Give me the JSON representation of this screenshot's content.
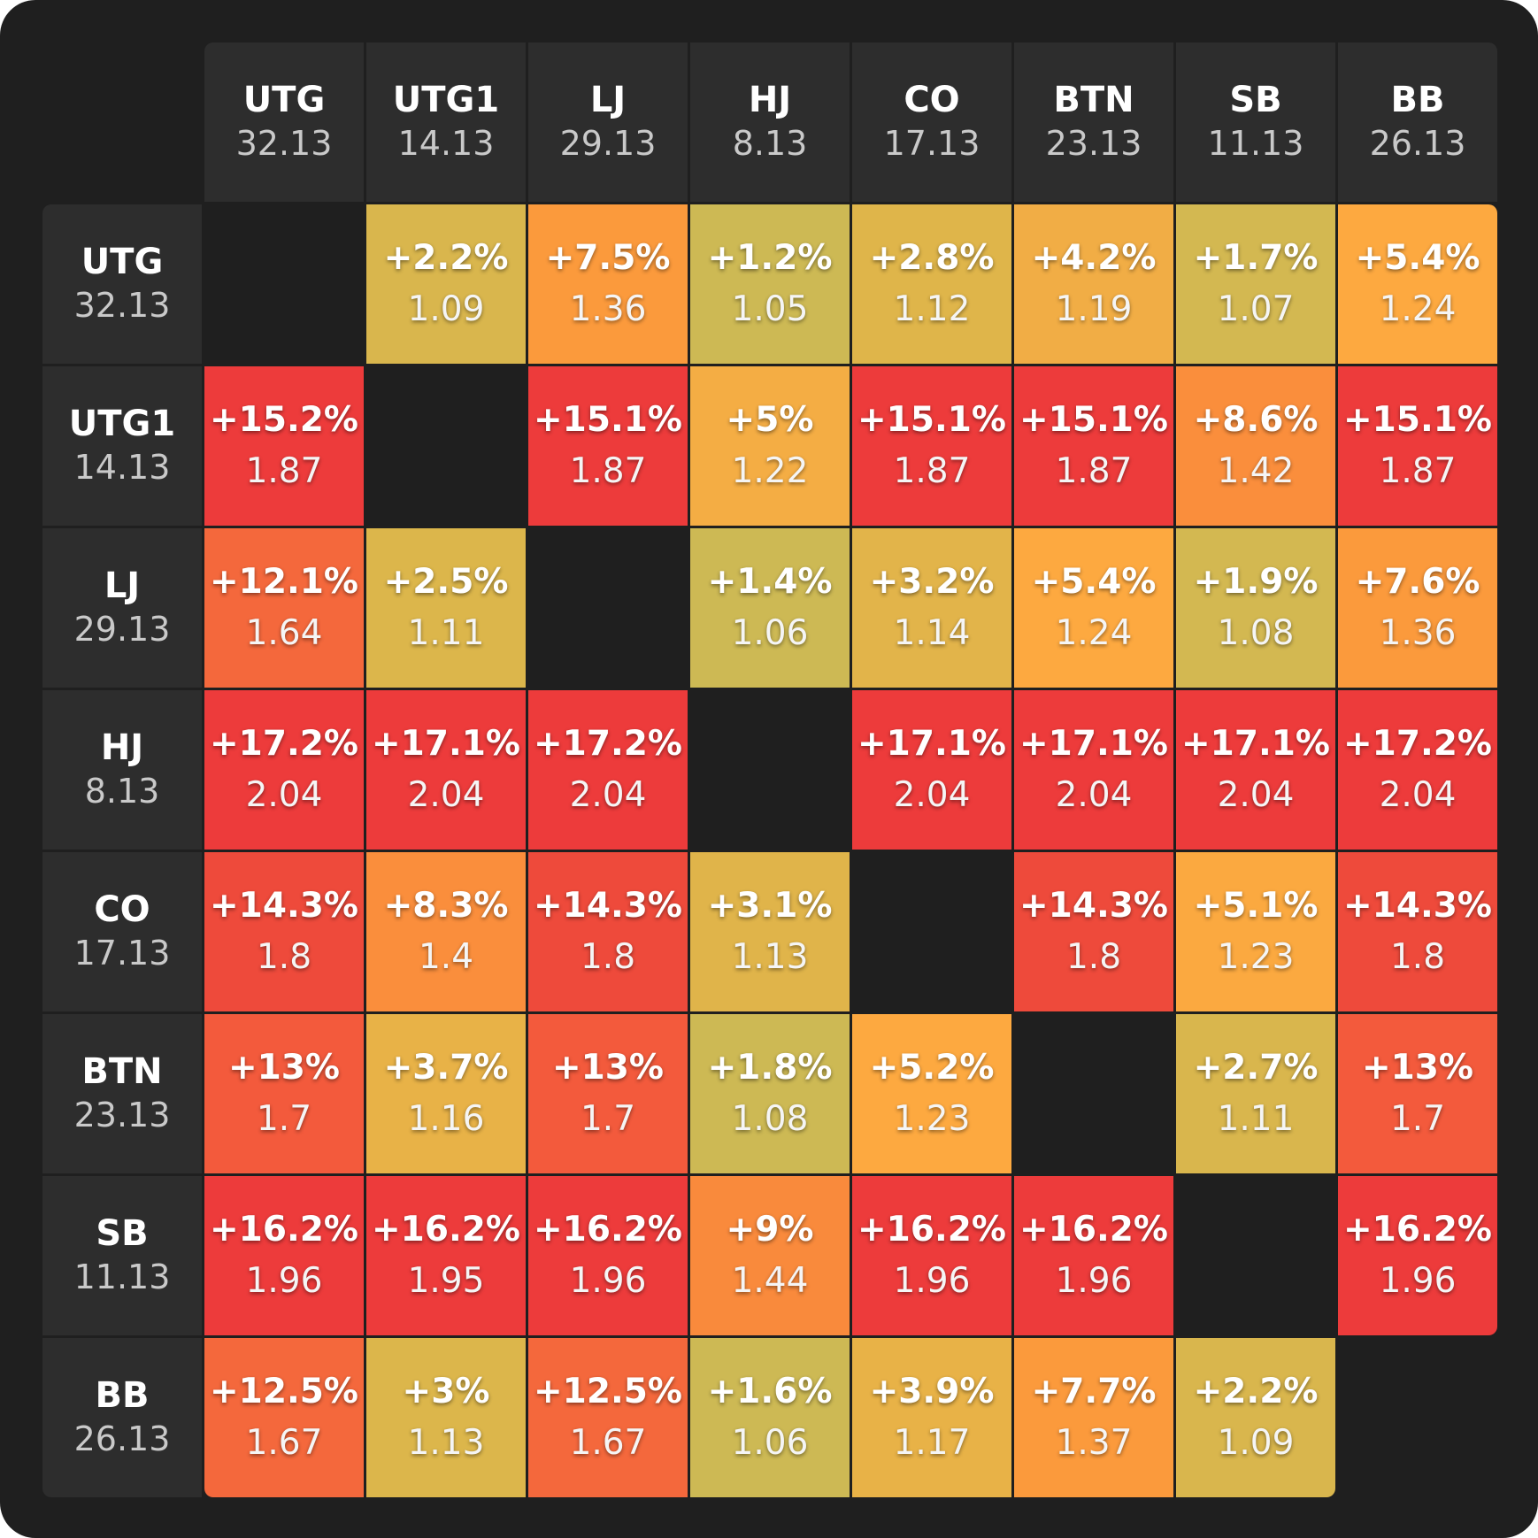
{
  "chart_data": {
    "type": "heatmap",
    "title": "",
    "positions": [
      {
        "name": "UTG",
        "stack": "32.13"
      },
      {
        "name": "UTG1",
        "stack": "14.13"
      },
      {
        "name": "LJ",
        "stack": "29.13"
      },
      {
        "name": "HJ",
        "stack": "8.13"
      },
      {
        "name": "CO",
        "stack": "17.13"
      },
      {
        "name": "BTN",
        "stack": "23.13"
      },
      {
        "name": "SB",
        "stack": "11.13"
      },
      {
        "name": "BB",
        "stack": "26.13"
      }
    ],
    "rows": [
      [
        null,
        {
          "pct": "+2.2%",
          "mult": "1.09",
          "color": "#d9b64d"
        },
        {
          "pct": "+7.5%",
          "mult": "1.36",
          "color": "#fb9a3c"
        },
        {
          "pct": "+1.2%",
          "mult": "1.05",
          "color": "#cdb954"
        },
        {
          "pct": "+2.8%",
          "mult": "1.12",
          "color": "#dfb54a"
        },
        {
          "pct": "+4.2%",
          "mult": "1.19",
          "color": "#f1ad45"
        },
        {
          "pct": "+1.7%",
          "mult": "1.07",
          "color": "#d3b851"
        },
        {
          "pct": "+5.4%",
          "mult": "1.24",
          "color": "#fda940"
        }
      ],
      [
        {
          "pct": "+15.2%",
          "mult": "1.87",
          "color": "#ed3b3b"
        },
        null,
        {
          "pct": "+15.1%",
          "mult": "1.87",
          "color": "#ed3b3b"
        },
        {
          "pct": "+5%",
          "mult": "1.22",
          "color": "#f4ad44"
        },
        {
          "pct": "+15.1%",
          "mult": "1.87",
          "color": "#ed3b3b"
        },
        {
          "pct": "+15.1%",
          "mult": "1.87",
          "color": "#ed3b3b"
        },
        {
          "pct": "+8.6%",
          "mult": "1.42",
          "color": "#fa8e3c"
        },
        {
          "pct": "+15.1%",
          "mult": "1.87",
          "color": "#ed3b3b"
        }
      ],
      [
        {
          "pct": "+12.1%",
          "mult": "1.64",
          "color": "#f4683c"
        },
        {
          "pct": "+2.5%",
          "mult": "1.11",
          "color": "#dcb64b"
        },
        null,
        {
          "pct": "+1.4%",
          "mult": "1.06",
          "color": "#cdb954"
        },
        {
          "pct": "+3.2%",
          "mult": "1.14",
          "color": "#e2b44a"
        },
        {
          "pct": "+5.4%",
          "mult": "1.24",
          "color": "#fda940"
        },
        {
          "pct": "+1.9%",
          "mult": "1.08",
          "color": "#d3b851"
        },
        {
          "pct": "+7.6%",
          "mult": "1.36",
          "color": "#fb9a3c"
        }
      ],
      [
        {
          "pct": "+17.2%",
          "mult": "2.04",
          "color": "#ed3b3b"
        },
        {
          "pct": "+17.1%",
          "mult": "2.04",
          "color": "#ed3b3b"
        },
        {
          "pct": "+17.2%",
          "mult": "2.04",
          "color": "#ed3b3b"
        },
        null,
        {
          "pct": "+17.1%",
          "mult": "2.04",
          "color": "#ed3b3b"
        },
        {
          "pct": "+17.1%",
          "mult": "2.04",
          "color": "#ed3b3b"
        },
        {
          "pct": "+17.1%",
          "mult": "2.04",
          "color": "#ed3b3b"
        },
        {
          "pct": "+17.2%",
          "mult": "2.04",
          "color": "#ed3b3b"
        }
      ],
      [
        {
          "pct": "+14.3%",
          "mult": "1.8",
          "color": "#ee4a3b"
        },
        {
          "pct": "+8.3%",
          "mult": "1.4",
          "color": "#fa8e3c"
        },
        {
          "pct": "+14.3%",
          "mult": "1.8",
          "color": "#ee4a3b"
        },
        {
          "pct": "+3.1%",
          "mult": "1.13",
          "color": "#e0b44a"
        },
        null,
        {
          "pct": "+14.3%",
          "mult": "1.8",
          "color": "#ee4a3b"
        },
        {
          "pct": "+5.1%",
          "mult": "1.23",
          "color": "#fba940"
        },
        {
          "pct": "+14.3%",
          "mult": "1.8",
          "color": "#ee4a3b"
        }
      ],
      [
        {
          "pct": "+13%",
          "mult": "1.7",
          "color": "#f35a3c"
        },
        {
          "pct": "+3.7%",
          "mult": "1.16",
          "color": "#e8b247"
        },
        {
          "pct": "+13%",
          "mult": "1.7",
          "color": "#f35a3c"
        },
        {
          "pct": "+1.8%",
          "mult": "1.08",
          "color": "#cdb954"
        },
        {
          "pct": "+5.2%",
          "mult": "1.23",
          "color": "#fda940"
        },
        null,
        {
          "pct": "+2.7%",
          "mult": "1.11",
          "color": "#d9b64d"
        },
        {
          "pct": "+13%",
          "mult": "1.7",
          "color": "#f35a3c"
        }
      ],
      [
        {
          "pct": "+16.2%",
          "mult": "1.96",
          "color": "#ed3b3b"
        },
        {
          "pct": "+16.2%",
          "mult": "1.95",
          "color": "#ed3b3b"
        },
        {
          "pct": "+16.2%",
          "mult": "1.96",
          "color": "#ed3b3b"
        },
        {
          "pct": "+9%",
          "mult": "1.44",
          "color": "#f98a3c"
        },
        {
          "pct": "+16.2%",
          "mult": "1.96",
          "color": "#ed3b3b"
        },
        {
          "pct": "+16.2%",
          "mult": "1.96",
          "color": "#ed3b3b"
        },
        null,
        {
          "pct": "+16.2%",
          "mult": "1.96",
          "color": "#ed3b3b"
        }
      ],
      [
        {
          "pct": "+12.5%",
          "mult": "1.67",
          "color": "#f4683c"
        },
        {
          "pct": "+3%",
          "mult": "1.13",
          "color": "#dcb64b"
        },
        {
          "pct": "+12.5%",
          "mult": "1.67",
          "color": "#f4683c"
        },
        {
          "pct": "+1.6%",
          "mult": "1.06",
          "color": "#cdb954"
        },
        {
          "pct": "+3.9%",
          "mult": "1.17",
          "color": "#e8b247"
        },
        {
          "pct": "+7.7%",
          "mult": "1.37",
          "color": "#fb9a3c"
        },
        {
          "pct": "+2.2%",
          "mult": "1.09",
          "color": "#d9b64d"
        },
        null
      ]
    ]
  }
}
